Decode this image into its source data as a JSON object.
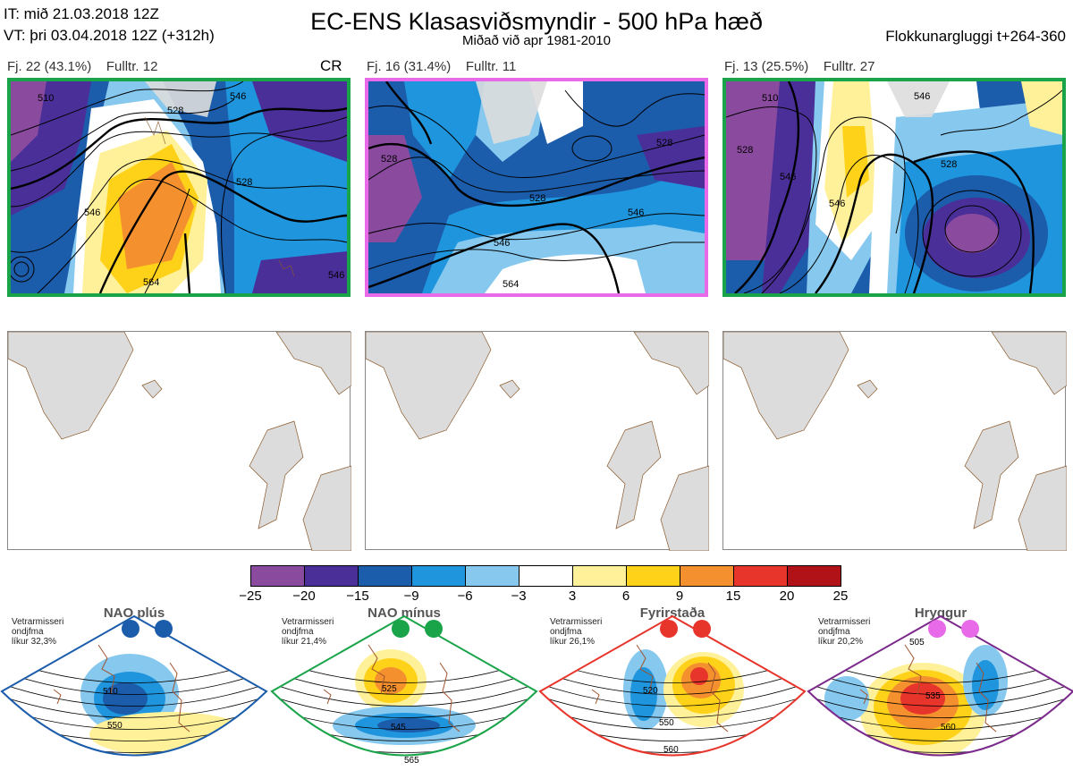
{
  "header": {
    "it_line": "IT: mið 21.03.2018 12Z",
    "vt_line": "VT: þri 03.04.2018 12Z  (+312h)",
    "title": "EC-ENS Klasasviðsmyndir - 500 hPa hæð",
    "subtitle": "Miðað við apr 1981-2010",
    "window": "Flokkunargluggi t+264-360"
  },
  "panels": [
    {
      "label": "Fj. 22 (43.1%)",
      "members": "Fulltr. 12",
      "tag": "CR",
      "border": "#1aa44a"
    },
    {
      "label": "Fj. 16 (31.4%)",
      "members": "Fulltr. 11",
      "tag": "",
      "border": "#e86ae8"
    },
    {
      "label": "Fj. 13 (25.5%)",
      "members": "Fulltr. 27",
      "tag": "",
      "border": "#1aa44a"
    }
  ],
  "contour_labels": {
    "p1": [
      "510",
      "528",
      "528",
      "546",
      "546",
      "564",
      "546"
    ],
    "p2": [
      "528",
      "528",
      "528",
      "546",
      "546",
      "564"
    ],
    "p3": [
      "510",
      "528",
      "528",
      "546",
      "546",
      "546"
    ]
  },
  "colorbar": {
    "ticks": [
      "−25",
      "−20",
      "−15",
      "−9",
      "−6",
      "−3",
      "3",
      "6",
      "9",
      "15",
      "20",
      "25"
    ],
    "colors": [
      "#8a4a9e",
      "#4a2f99",
      "#1b5cab",
      "#1f95dd",
      "#86c8ee",
      "#ffffff",
      "#fff19a",
      "#ffd21a",
      "#f4902e",
      "#e8352b",
      "#b01217"
    ]
  },
  "regimes": [
    {
      "name": "NAO plús",
      "prob": [
        "Vetrarmisseri",
        "ondjfma",
        "líkur 32,3%"
      ],
      "dot": "#1b5cab",
      "border": "#1b5cab",
      "labels": [
        "510",
        "550"
      ]
    },
    {
      "name": "NAO mínus",
      "prob": [
        "Vetrarmisseri",
        "ondjfma",
        "líkur 21,4%"
      ],
      "dot": "#1aa44a",
      "border": "#1aa44a",
      "labels": [
        "525",
        "545",
        "565"
      ]
    },
    {
      "name": "Fyrirstaða",
      "prob": [
        "Vetrarmisseri",
        "ondjfma",
        "líkur 26,1%"
      ],
      "dot": "#e8352b",
      "border": "#e8352b",
      "labels": [
        "520",
        "550",
        "560"
      ]
    },
    {
      "name": "Hryggur",
      "prob": [
        "Vetrarmisseri",
        "ondjfma",
        "líkur 20,2%"
      ],
      "dot": "#e86ae8",
      "border": "#7b2a8c",
      "labels": [
        "505",
        "535",
        "560"
      ]
    }
  ]
}
